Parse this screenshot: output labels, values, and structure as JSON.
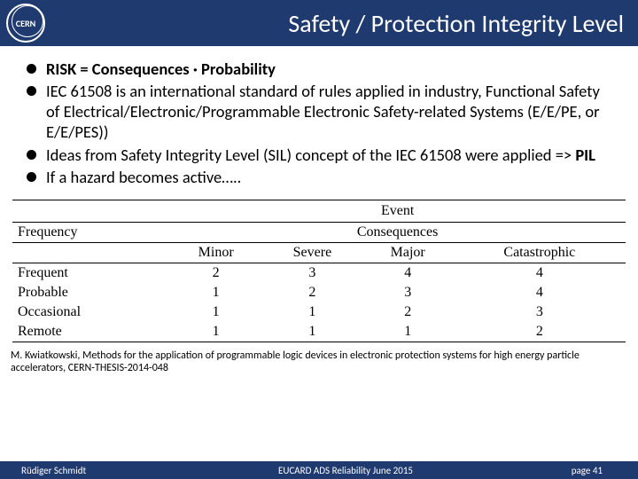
{
  "header": {
    "logo_text": "CERN",
    "title": "Safety / Protection Integrity Level"
  },
  "bullets": [
    {
      "html": "<span class='bold'>RISK = Consequences · Probability</span>"
    },
    {
      "html": "IEC 61508 is an international standard of rules applied in industry, Functional Safety of Electrical/Electronic/Programmable Electronic Safety-related Systems (E/E/PE, or E/E/PES))"
    },
    {
      "html": "Ideas from Safety Integrity Level (SIL) concept of the IEC 61508 were applied => <span class='bold'>PIL</span>"
    },
    {
      "html": "If a hazard becomes active….."
    }
  ],
  "table": {
    "top_header": [
      "Event"
    ],
    "section_left": "Frequency",
    "section_right": "Consequences",
    "cons_cols": [
      "Minor",
      "Severe",
      "Major",
      "Catastrophic"
    ],
    "rows": [
      {
        "label": "Frequent",
        "vals": [
          "2",
          "3",
          "4",
          "4"
        ]
      },
      {
        "label": "Probable",
        "vals": [
          "1",
          "2",
          "3",
          "4"
        ]
      },
      {
        "label": "Occasional",
        "vals": [
          "1",
          "1",
          "2",
          "3"
        ]
      },
      {
        "label": "Remote",
        "vals": [
          "1",
          "1",
          "1",
          "2"
        ]
      }
    ]
  },
  "citation": "M. Kwiatkowski, Methods for the application of programmable logic devices in electronic protection systems for high energy particle accelerators, CERN-THESIS-2014-048",
  "footer": {
    "left": "Rüdiger Schmidt",
    "center": "EUCARD ADS Reliability June 2015",
    "right": "page 41"
  }
}
